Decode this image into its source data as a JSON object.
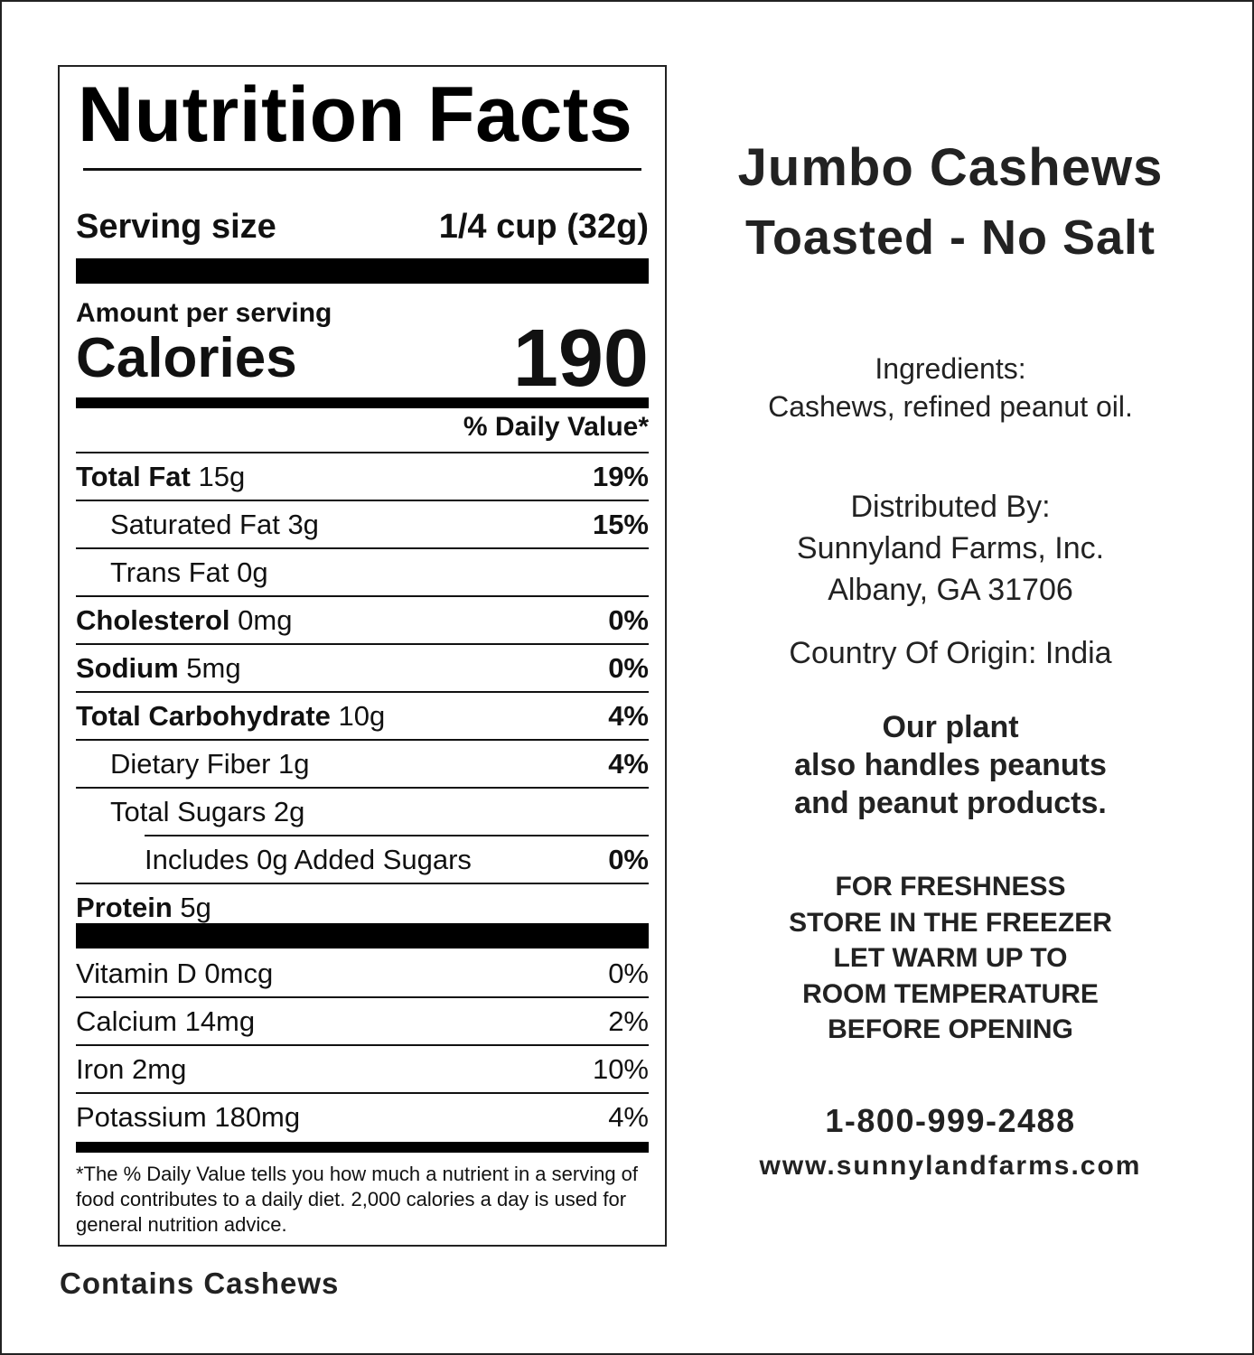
{
  "nutrition": {
    "title": "Nutrition Facts",
    "serving_size_label": "Serving size",
    "serving_size_value": "1/4 cup (32g)",
    "amount_per_serving": "Amount per serving",
    "calories_label": "Calories",
    "calories_value": "190",
    "dv_header": "% Daily Value*",
    "nutrients": [
      {
        "name": "Total Fat",
        "amount": "15g",
        "dv": "19%"
      },
      {
        "name": "Saturated Fat 3g",
        "dv": "15%"
      },
      {
        "name": "Trans Fat 0g",
        "dv": ""
      },
      {
        "name": "Cholesterol",
        "amount": "0mg",
        "dv": "0%"
      },
      {
        "name": "Sodium",
        "amount": "5mg",
        "dv": "0%"
      },
      {
        "name": "Total Carbohydrate",
        "amount": "10g",
        "dv": "4%"
      },
      {
        "name": "Dietary Fiber 1g",
        "dv": "4%"
      },
      {
        "name": "Total Sugars 2g",
        "dv": ""
      },
      {
        "name": "Includes 0g Added Sugars",
        "dv": "0%"
      },
      {
        "name": "Protein",
        "amount": "5g",
        "dv": ""
      }
    ],
    "vitamins": [
      {
        "name": "Vitamin D 0mcg",
        "dv": "0%"
      },
      {
        "name": "Calcium 14mg",
        "dv": "2%"
      },
      {
        "name": "Iron 2mg",
        "dv": "10%"
      },
      {
        "name": "Potassium 180mg",
        "dv": "4%"
      }
    ],
    "footnote": "*The % Daily Value tells you how much a nutrient in a serving of food contributes to a daily diet. 2,000 calories a day is used for general nutrition advice."
  },
  "contains": "Contains Cashews",
  "product": {
    "name": "Jumbo Cashews",
    "subtitle": "Toasted - No Salt",
    "ingredients_label": "Ingredients:",
    "ingredients": "Cashews, refined peanut oil.",
    "distributed_by": "Distributed By:",
    "company": "Sunnyland Farms, Inc.",
    "address": "Albany, GA 31706",
    "origin": "Country Of Origin: India",
    "allergen_lines": [
      "Our plant",
      "also handles peanuts",
      "and peanut products."
    ],
    "storage_lines": [
      "FOR FRESHNESS",
      "STORE IN THE FREEZER",
      "LET WARM UP TO",
      "ROOM TEMPERATURE",
      "BEFORE OPENING"
    ],
    "phone": "1-800-999-2488",
    "website": "www.sunnylandfarms.com"
  }
}
